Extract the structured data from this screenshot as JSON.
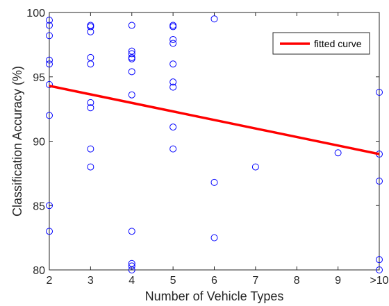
{
  "chart_data": {
    "type": "scatter",
    "title": "",
    "xlabel": "Number of Vehicle Types",
    "ylabel": "Classification Accuracy (%)",
    "xlim": [
      2,
      10
    ],
    "ylim": [
      80,
      100
    ],
    "x_ticks": [
      2,
      3,
      4,
      5,
      6,
      7,
      8,
      9,
      10
    ],
    "x_tick_labels": [
      "2",
      "3",
      "4",
      "5",
      "6",
      "7",
      "8",
      "9",
      ">10"
    ],
    "y_ticks": [
      80,
      85,
      90,
      95,
      100
    ],
    "y_tick_labels": [
      "80",
      "85",
      "90",
      "95",
      "100"
    ],
    "grid": false,
    "legend_position": "top-right",
    "series": [
      {
        "type": "scatter",
        "marker": "circle-open",
        "color": "#0000ff",
        "points": [
          [
            2,
            99.4
          ],
          [
            2,
            99.0
          ],
          [
            2,
            98.2
          ],
          [
            2,
            96.3
          ],
          [
            2,
            96.0
          ],
          [
            2,
            94.4
          ],
          [
            2,
            92.0
          ],
          [
            2,
            85.0
          ],
          [
            2,
            83.0
          ],
          [
            3,
            99.0
          ],
          [
            3,
            98.9
          ],
          [
            3,
            98.5
          ],
          [
            3,
            96.5
          ],
          [
            3,
            96.0
          ],
          [
            3,
            93.0
          ],
          [
            3,
            92.6
          ],
          [
            3,
            89.4
          ],
          [
            3,
            88.0
          ],
          [
            4,
            99.0
          ],
          [
            4,
            97.0
          ],
          [
            4,
            96.8
          ],
          [
            4,
            96.5
          ],
          [
            4,
            96.4
          ],
          [
            4,
            95.4
          ],
          [
            4,
            93.6
          ],
          [
            4,
            83.0
          ],
          [
            4,
            80.5
          ],
          [
            4,
            80.3
          ],
          [
            4,
            80.0
          ],
          [
            5,
            99.0
          ],
          [
            5,
            98.9
          ],
          [
            5,
            97.9
          ],
          [
            5,
            97.6
          ],
          [
            5,
            96.0
          ],
          [
            5,
            94.6
          ],
          [
            5,
            94.2
          ],
          [
            5,
            91.1
          ],
          [
            5,
            89.4
          ],
          [
            6,
            99.5
          ],
          [
            6,
            86.8
          ],
          [
            6,
            82.5
          ],
          [
            7,
            88.0
          ],
          [
            9,
            89.1
          ],
          [
            10,
            93.8
          ],
          [
            10,
            89.0
          ],
          [
            10,
            86.9
          ],
          [
            10,
            80.8
          ],
          [
            10,
            80.0
          ]
        ]
      },
      {
        "name": "fitted curve",
        "type": "line",
        "color": "#ff0000",
        "x": [
          2,
          10
        ],
        "y": [
          94.3,
          89.0
        ]
      }
    ]
  }
}
